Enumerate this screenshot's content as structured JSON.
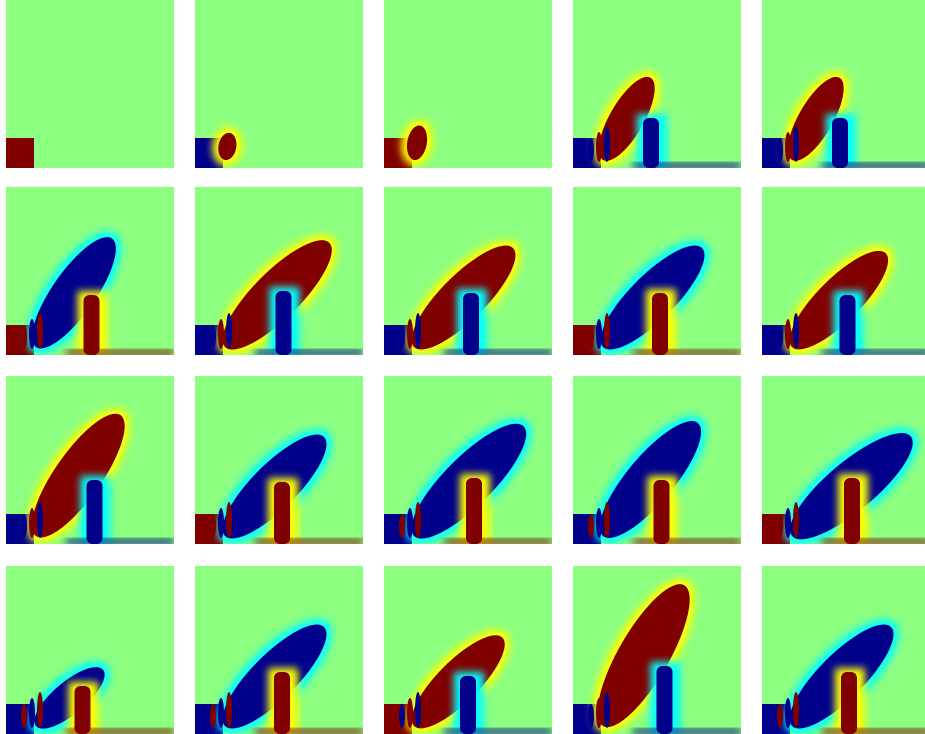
{
  "figure": {
    "rows": 4,
    "columns": 5,
    "colormap": [
      "#00008b",
      "#0000ff",
      "#00ffff",
      "#8cff80",
      "#ffff00",
      "#ff0000",
      "#800000"
    ],
    "background_color": "#8cff80",
    "panels": [
      {
        "id": 1,
        "row": 1,
        "col": 1,
        "plume_extent": 0.0,
        "plume_polarity": "none",
        "plume_angle": 45
      },
      {
        "id": 2,
        "row": 1,
        "col": 2,
        "plume_extent": 0.05,
        "plume_polarity": "positive",
        "plume_angle": 80
      },
      {
        "id": 3,
        "row": 1,
        "col": 3,
        "plume_extent": 0.1,
        "plume_polarity": "positive",
        "plume_angle": 80
      },
      {
        "id": 4,
        "row": 1,
        "col": 4,
        "plume_extent": 0.5,
        "plume_polarity": "positive",
        "plume_angle": 60
      },
      {
        "id": 5,
        "row": 1,
        "col": 5,
        "plume_extent": 0.5,
        "plume_polarity": "positive",
        "plume_angle": 60
      },
      {
        "id": 6,
        "row": 2,
        "col": 1,
        "plume_extent": 0.75,
        "plume_polarity": "negative",
        "plume_angle": 55
      },
      {
        "id": 7,
        "row": 2,
        "col": 2,
        "plume_extent": 0.85,
        "plume_polarity": "positive",
        "plume_angle": 45
      },
      {
        "id": 8,
        "row": 2,
        "col": 3,
        "plume_extent": 0.8,
        "plume_polarity": "positive",
        "plume_angle": 45
      },
      {
        "id": 9,
        "row": 2,
        "col": 4,
        "plume_extent": 0.8,
        "plume_polarity": "negative",
        "plume_angle": 45
      },
      {
        "id": 10,
        "row": 2,
        "col": 5,
        "plume_extent": 0.75,
        "plume_polarity": "positive",
        "plume_angle": 45
      },
      {
        "id": 11,
        "row": 3,
        "col": 1,
        "plume_extent": 0.85,
        "plume_polarity": "positive",
        "plume_angle": 55
      },
      {
        "id": 12,
        "row": 3,
        "col": 2,
        "plume_extent": 0.8,
        "plume_polarity": "negative",
        "plume_angle": 45
      },
      {
        "id": 13,
        "row": 3,
        "col": 3,
        "plume_extent": 0.9,
        "plume_polarity": "negative",
        "plume_angle": 45
      },
      {
        "id": 14,
        "row": 3,
        "col": 4,
        "plume_extent": 0.85,
        "plume_polarity": "negative",
        "plume_angle": 50
      },
      {
        "id": 15,
        "row": 3,
        "col": 5,
        "plume_extent": 0.9,
        "plume_polarity": "negative",
        "plume_angle": 40
      },
      {
        "id": 16,
        "row": 4,
        "col": 1,
        "plume_extent": 0.45,
        "plume_polarity": "negative",
        "plume_angle": 40
      },
      {
        "id": 17,
        "row": 4,
        "col": 2,
        "plume_extent": 0.8,
        "plume_polarity": "negative",
        "plume_angle": 45
      },
      {
        "id": 18,
        "row": 4,
        "col": 3,
        "plume_extent": 0.7,
        "plume_polarity": "positive",
        "plume_angle": 45
      },
      {
        "id": 19,
        "row": 4,
        "col": 4,
        "plume_extent": 0.95,
        "plume_polarity": "positive",
        "plume_angle": 60
      },
      {
        "id": 20,
        "row": 4,
        "col": 5,
        "plume_extent": 0.8,
        "plume_polarity": "negative",
        "plume_angle": 45
      }
    ]
  }
}
